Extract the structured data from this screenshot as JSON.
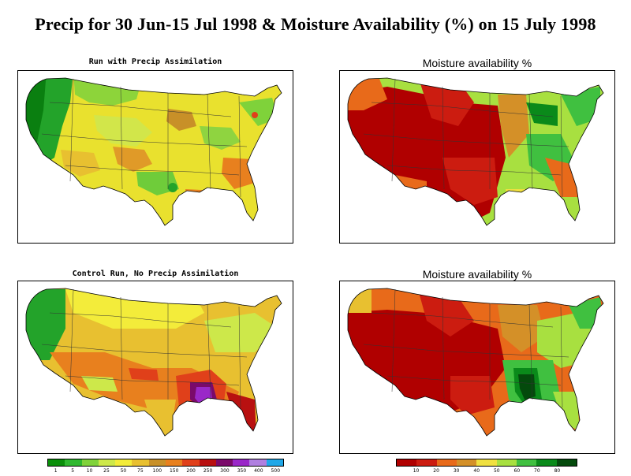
{
  "title": "Precip for 30 Jun-15 Jul 1998 & Moisture Availability (%) on 15 July 1998",
  "panels": {
    "top_left": {
      "title": "Run with Precip Assimilation"
    },
    "top_right": {
      "title": "Moisture availability %"
    },
    "bottom_left": {
      "title": "Control Run, No Precip Assimilation"
    },
    "bottom_right": {
      "title": "Moisture availability %"
    }
  },
  "legend_precip": {
    "labels": [
      "1",
      "5",
      "10",
      "25",
      "50",
      "75",
      "100",
      "150",
      "200",
      "250",
      "300",
      "350",
      "400",
      "500"
    ],
    "colors": [
      "#0a8f0a",
      "#2fb82f",
      "#7fd23a",
      "#cde84a",
      "#f3ec3a",
      "#e8c030",
      "#c89028",
      "#e8801e",
      "#e0401a",
      "#b81010",
      "#7a0a6a",
      "#9a28c8",
      "#b080e0",
      "#20a8e8"
    ]
  },
  "legend_moisture": {
    "labels": [
      "10",
      "20",
      "30",
      "40",
      "50",
      "60",
      "70",
      "80"
    ],
    "colors": [
      "#b00000",
      "#cc1c10",
      "#e86a1a",
      "#d49028",
      "#f0e040",
      "#a8e040",
      "#40c040",
      "#0a8a1a",
      "#044a0c"
    ]
  }
}
